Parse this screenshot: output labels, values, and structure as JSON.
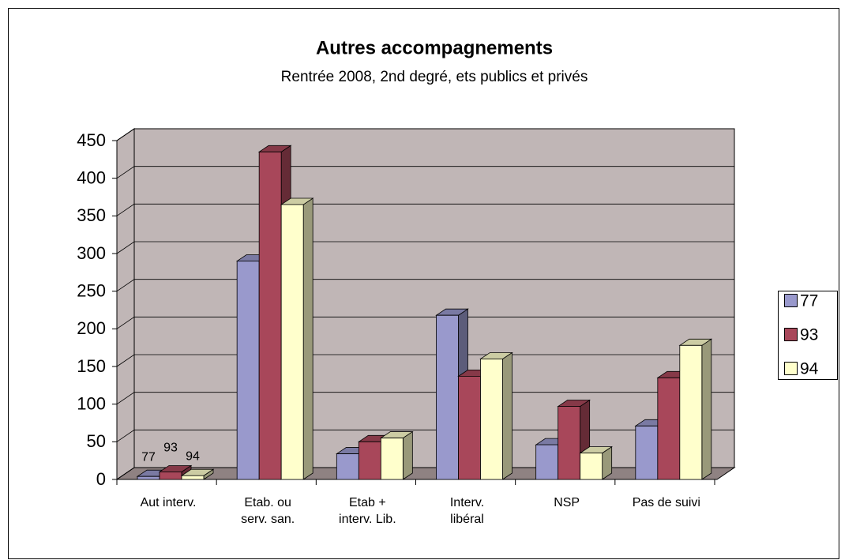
{
  "chart_data": {
    "type": "bar3d",
    "title": "Autres accompagnements",
    "subtitle": "Rentrée 2008, 2nd degré, ets publics et privés",
    "categories": [
      "Aut interv.",
      "Etab. ou\nserv. san.",
      "Etab +\ninterv. Lib.",
      "Interv.\nlibéral",
      "NSP",
      "Pas de suivi"
    ],
    "series": [
      {
        "name": "77",
        "color": "#9999cc",
        "values": [
          4,
          290,
          34,
          218,
          46,
          71
        ]
      },
      {
        "name": "93",
        "color": "#a8475a",
        "values": [
          10,
          435,
          50,
          137,
          97,
          135
        ]
      },
      {
        "name": "94",
        "color": "#ffffcc",
        "values": [
          5,
          365,
          55,
          160,
          35,
          178
        ]
      }
    ],
    "ylim": [
      0,
      450
    ],
    "yticks": [
      0,
      50,
      100,
      150,
      200,
      250,
      300,
      350,
      400,
      450
    ],
    "grid": true,
    "legend": "right"
  }
}
